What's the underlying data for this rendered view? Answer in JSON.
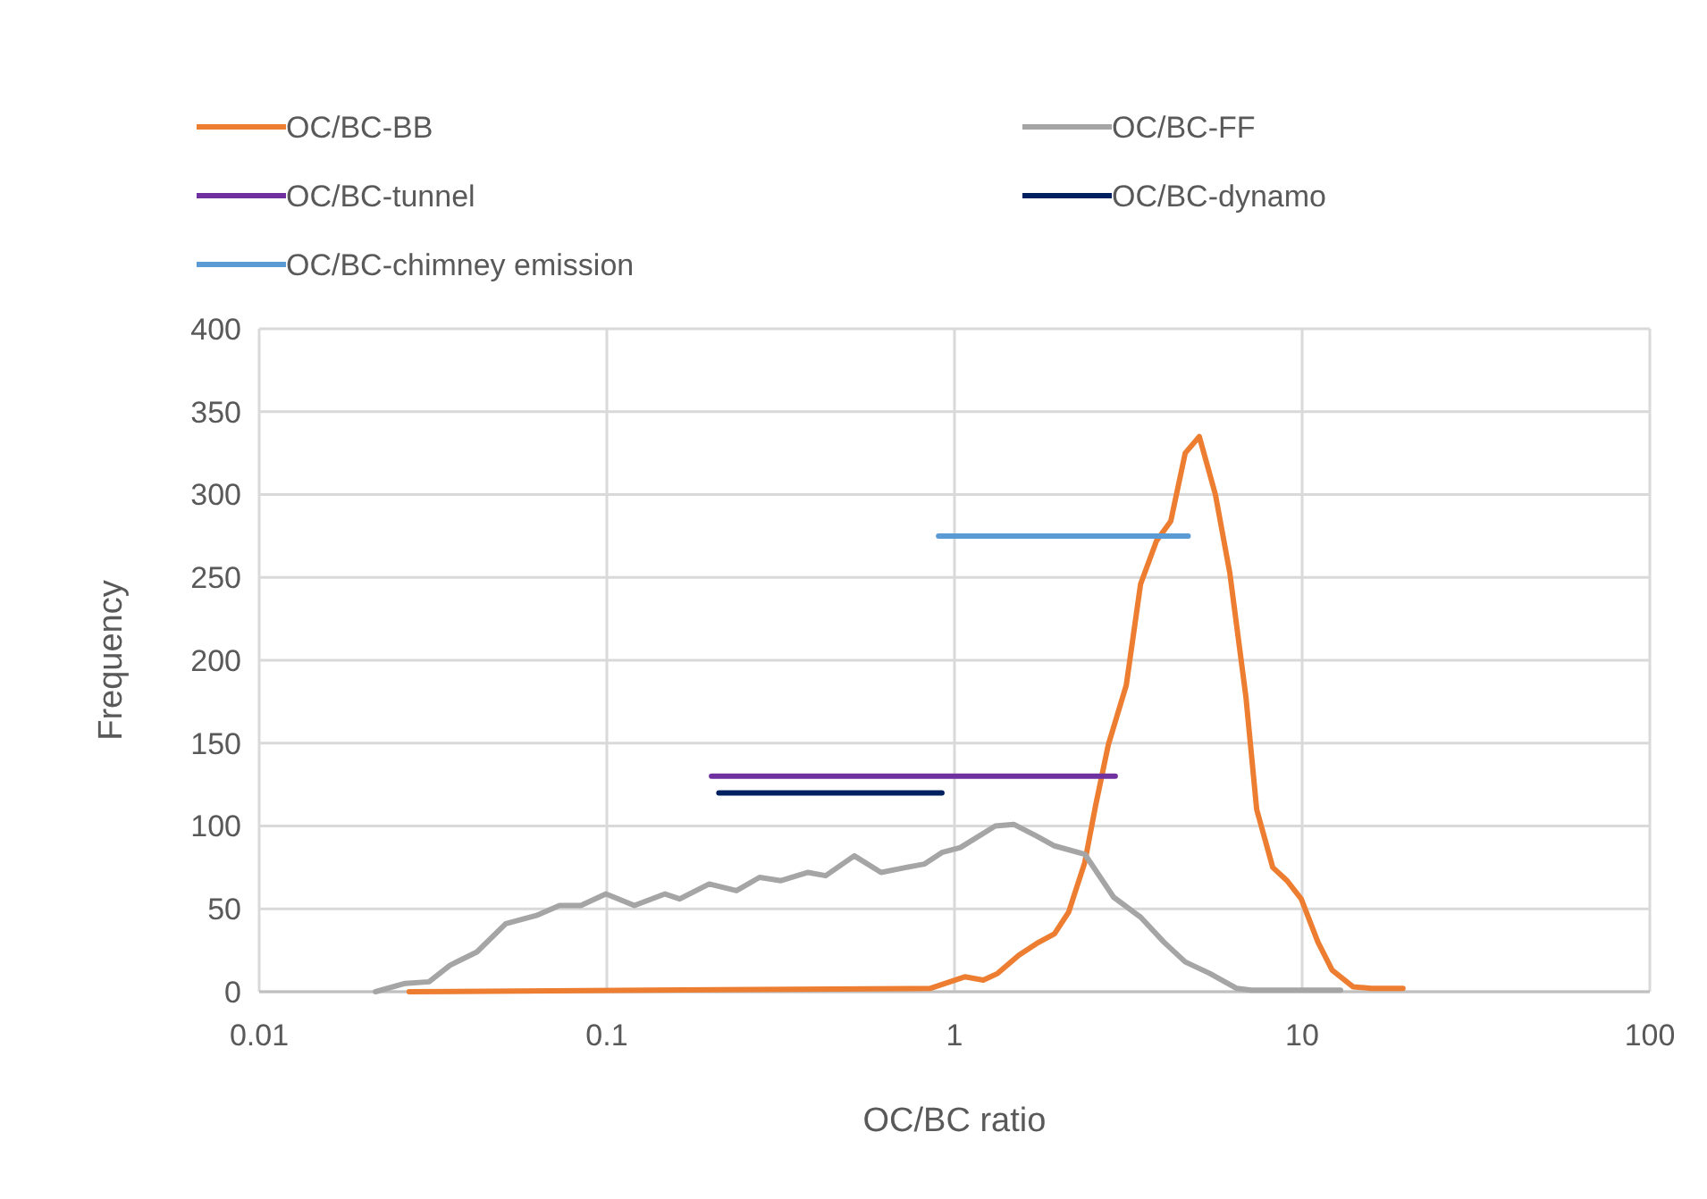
{
  "chart_data": {
    "type": "line",
    "xlabel": "OC/BC ratio",
    "ylabel": "Frequency",
    "log": "x",
    "grid": true,
    "legend": "top",
    "marker": "none",
    "line_style": "solid",
    "xlim": [
      0.01,
      100
    ],
    "xticks": [
      0.01,
      0.1,
      1,
      10,
      100
    ],
    "ylim": [
      0,
      400
    ],
    "yticks": [
      0,
      50,
      100,
      150,
      200,
      250,
      300,
      350,
      400
    ],
    "series": [
      {
        "name": "OC/BC-BB",
        "color": "#ed7d31",
        "x": [
          0.027,
          0.85,
          1.07,
          1.21,
          1.33,
          1.53,
          1.72,
          1.94,
          2.13,
          2.37,
          2.55,
          2.77,
          3.12,
          3.43,
          3.81,
          4.19,
          4.61,
          5.06,
          5.63,
          6.19,
          6.89,
          7.4,
          8.23,
          9.05,
          9.94,
          11.1,
          12.2,
          14,
          15.8,
          19.5
        ],
        "values": [
          0,
          2,
          9,
          7,
          11,
          22,
          29,
          35,
          48,
          78,
          113,
          149,
          185,
          246,
          272,
          284,
          325,
          335,
          300,
          253,
          178,
          110,
          75,
          67,
          56,
          30,
          13,
          3,
          2,
          2
        ]
      },
      {
        "name": "OC/BC-FF",
        "color": "#a5a5a5",
        "x": [
          0.0216,
          0.0263,
          0.0308,
          0.0354,
          0.0423,
          0.0512,
          0.0627,
          0.0731,
          0.0842,
          0.0994,
          0.12,
          0.147,
          0.162,
          0.197,
          0.236,
          0.275,
          0.317,
          0.379,
          0.426,
          0.515,
          0.615,
          0.726,
          0.818,
          0.92,
          1.04,
          1.31,
          1.48,
          1.72,
          1.94,
          2.37,
          2.87,
          3.43,
          4,
          4.61,
          5.43,
          6.49,
          7.13,
          12.9
        ],
        "values": [
          0,
          5,
          6,
          16,
          24,
          41,
          46,
          52,
          52,
          59,
          52,
          59,
          56,
          65,
          61,
          69,
          67,
          72,
          70,
          82,
          72,
          75,
          77,
          84,
          87,
          100,
          101,
          94,
          88,
          83,
          57,
          45,
          30,
          18,
          11,
          2,
          1,
          1
        ]
      },
      {
        "name": "OC/BC-tunnel",
        "color": "#7030a0",
        "x": [
          0.2,
          2.9
        ],
        "values": [
          130,
          130
        ]
      },
      {
        "name": "OC/BC-dynamo",
        "color": "#002060",
        "x": [
          0.21,
          0.92
        ],
        "values": [
          120,
          120
        ]
      },
      {
        "name": "OC/BC-chimney emission",
        "color": "#5b9bd5",
        "x": [
          0.9,
          4.7
        ],
        "values": [
          275,
          275
        ]
      }
    ]
  }
}
